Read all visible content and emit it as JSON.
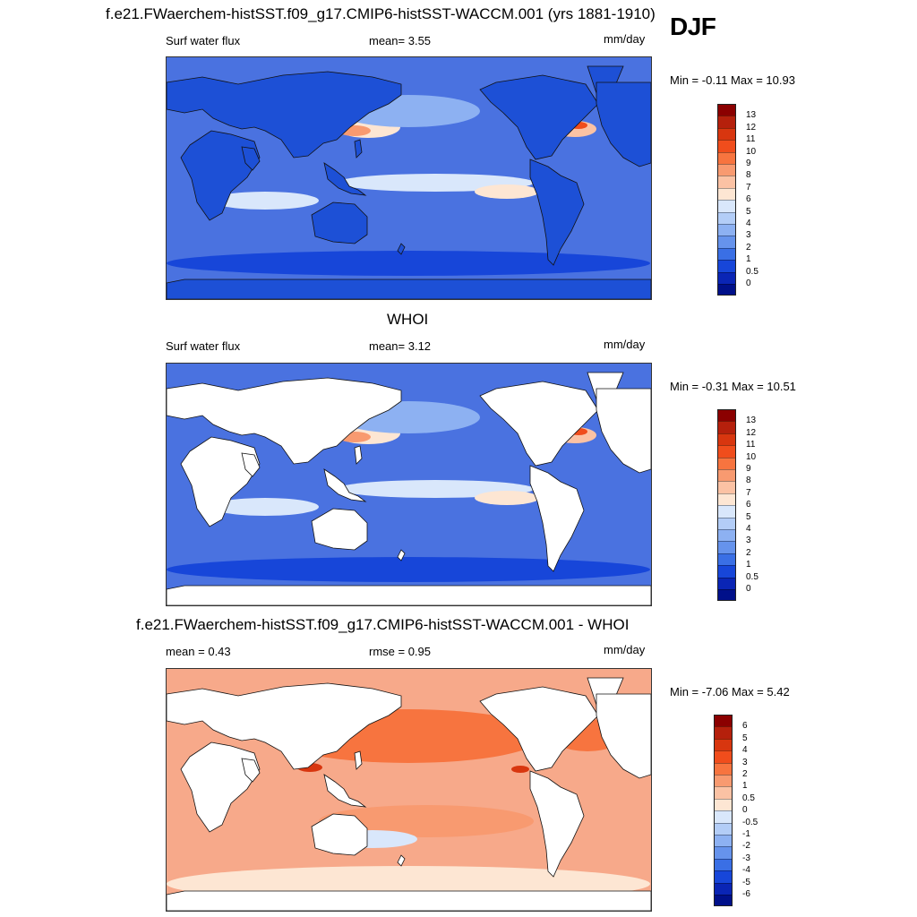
{
  "season": "DJF",
  "panels": [
    {
      "title": "f.e21.FWaerchem-histSST.f09_g17.CMIP6-histSST-WACCM.001 (yrs 1881-1910)",
      "left_label": "Surf water flux",
      "center_label": "mean=   3.55",
      "units": "mm/day",
      "minmax": "Min =  -0.11 Max =  10.93",
      "land_filled": true,
      "ocean_base": "#4a72e0"
    },
    {
      "title": "WHOI",
      "left_label": "Surf water flux",
      "center_label": "mean=   3.12",
      "units": "mm/day",
      "minmax": "Min =  -0.31 Max =  10.51",
      "land_filled": false,
      "ocean_base": "#4a72e0"
    },
    {
      "title": "f.e21.FWaerchem-histSST.f09_g17.CMIP6-histSST-WACCM.001 - WHOI",
      "left_label": "mean =   0.43",
      "center_label": "rmse =   0.95",
      "units": "mm/day",
      "minmax": "Min =  -7.06 Max =   5.42",
      "land_filled": false,
      "ocean_base": "#f7a98a"
    }
  ],
  "colorbar_abs": {
    "labels": [
      "13",
      "12",
      "11",
      "10",
      "9",
      "8",
      "7",
      "6",
      "5",
      "4",
      "3",
      "2",
      "1",
      "0.5",
      "0"
    ],
    "colors": [
      "#8b0000",
      "#b5200c",
      "#d8360f",
      "#f04d1c",
      "#f7743f",
      "#f89a70",
      "#fbc2a4",
      "#fde6d3",
      "#d9e7fb",
      "#b3cdf7",
      "#8db1f2",
      "#6693ec",
      "#3a6fe5",
      "#1746d9",
      "#0a25b5",
      "#00108a"
    ]
  },
  "colorbar_diff": {
    "labels": [
      "6",
      "5",
      "4",
      "3",
      "2",
      "1",
      "0.5",
      "0",
      "-0.5",
      "-1",
      "-2",
      "-3",
      "-4",
      "-5",
      "-6"
    ],
    "colors": [
      "#8b0000",
      "#b5200c",
      "#d8360f",
      "#f04d1c",
      "#f7743f",
      "#f89a70",
      "#fbc2a4",
      "#fde6d3",
      "#d9e7fb",
      "#b3cdf7",
      "#8db1f2",
      "#6693ec",
      "#3a6fe5",
      "#1746d9",
      "#0a25b5",
      "#00108a"
    ]
  }
}
